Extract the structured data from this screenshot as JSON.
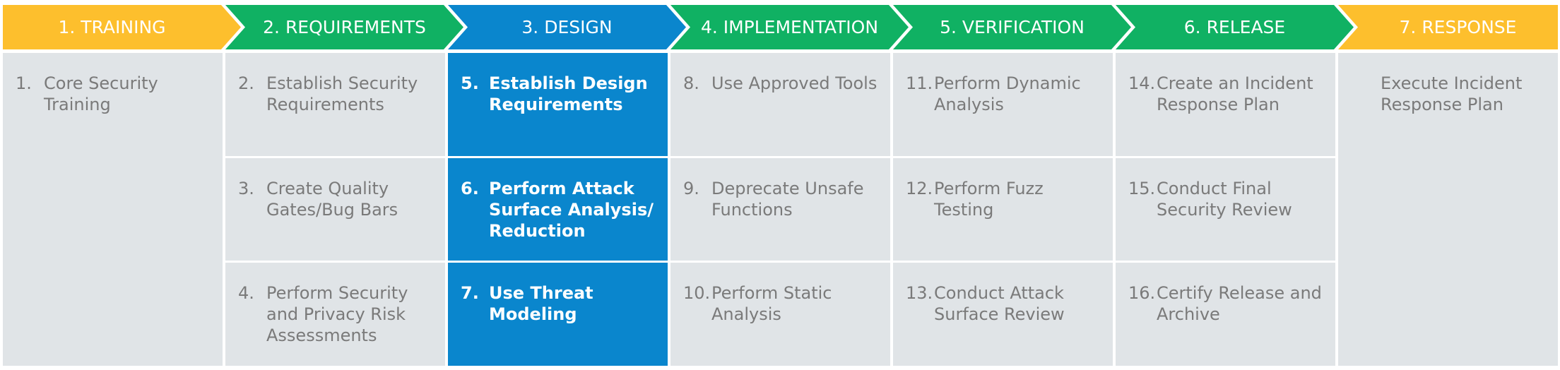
{
  "phases": [
    {
      "title": "1. TRAINING",
      "color": "#fdbf2d",
      "cell_color": "#e0e4e7",
      "text_color": "#7a7a7a",
      "items": [
        {
          "number": "1.",
          "text": "Core Security Training"
        }
      ]
    },
    {
      "title": "2. REQUIREMENTS",
      "color": "#10b163",
      "cell_color": "#e0e4e7",
      "text_color": "#7a7a7a",
      "items": [
        {
          "number": "2.",
          "text": "Establish Security Requirements"
        },
        {
          "number": "3.",
          "text": "Create Quality Gates/Bug Bars"
        },
        {
          "number": "4.",
          "text": "Perform Security and Privacy Risk Assessments"
        }
      ]
    },
    {
      "title": "3. DESIGN",
      "color": "#0a86cd",
      "cell_color": "#0a86cd",
      "text_color": "#ffffff",
      "items": [
        {
          "number": "5.",
          "text": "Establish Design Requirements"
        },
        {
          "number": "6.",
          "text": "Perform Attack Surface Analysis/ Reduction"
        },
        {
          "number": "7.",
          "text": "Use Threat Modeling"
        }
      ]
    },
    {
      "title": "4. IMPLEMENTATION",
      "color": "#10b163",
      "cell_color": "#e0e4e7",
      "text_color": "#7a7a7a",
      "items": [
        {
          "number": "8.",
          "text": "Use Approved Tools"
        },
        {
          "number": "9.",
          "text": "Deprecate Unsafe Functions"
        },
        {
          "number": "10.",
          "text": "Perform Static Analysis"
        }
      ]
    },
    {
      "title": "5. VERIFICATION",
      "color": "#10b163",
      "cell_color": "#e0e4e7",
      "text_color": "#7a7a7a",
      "items": [
        {
          "number": "11.",
          "text": "Perform Dynamic Analysis"
        },
        {
          "number": "12.",
          "text": "Perform Fuzz Testing"
        },
        {
          "number": "13.",
          "text": "Conduct Attack Surface Review"
        }
      ]
    },
    {
      "title": "6. RELEASE",
      "color": "#10b163",
      "cell_color": "#e0e4e7",
      "text_color": "#7a7a7a",
      "items": [
        {
          "number": "14.",
          "text": "Create an Incident Response Plan"
        },
        {
          "number": "15.",
          "text": "Conduct Final Security Review"
        },
        {
          "number": "16.",
          "text": "Certify Release and Archive"
        }
      ]
    },
    {
      "title": "7. RESPONSE",
      "color": "#fdbf2d",
      "cell_color": "#e0e4e7",
      "text_color": "#7a7a7a",
      "items": [
        {
          "text": "Execute Incident Response Plan"
        }
      ]
    }
  ]
}
